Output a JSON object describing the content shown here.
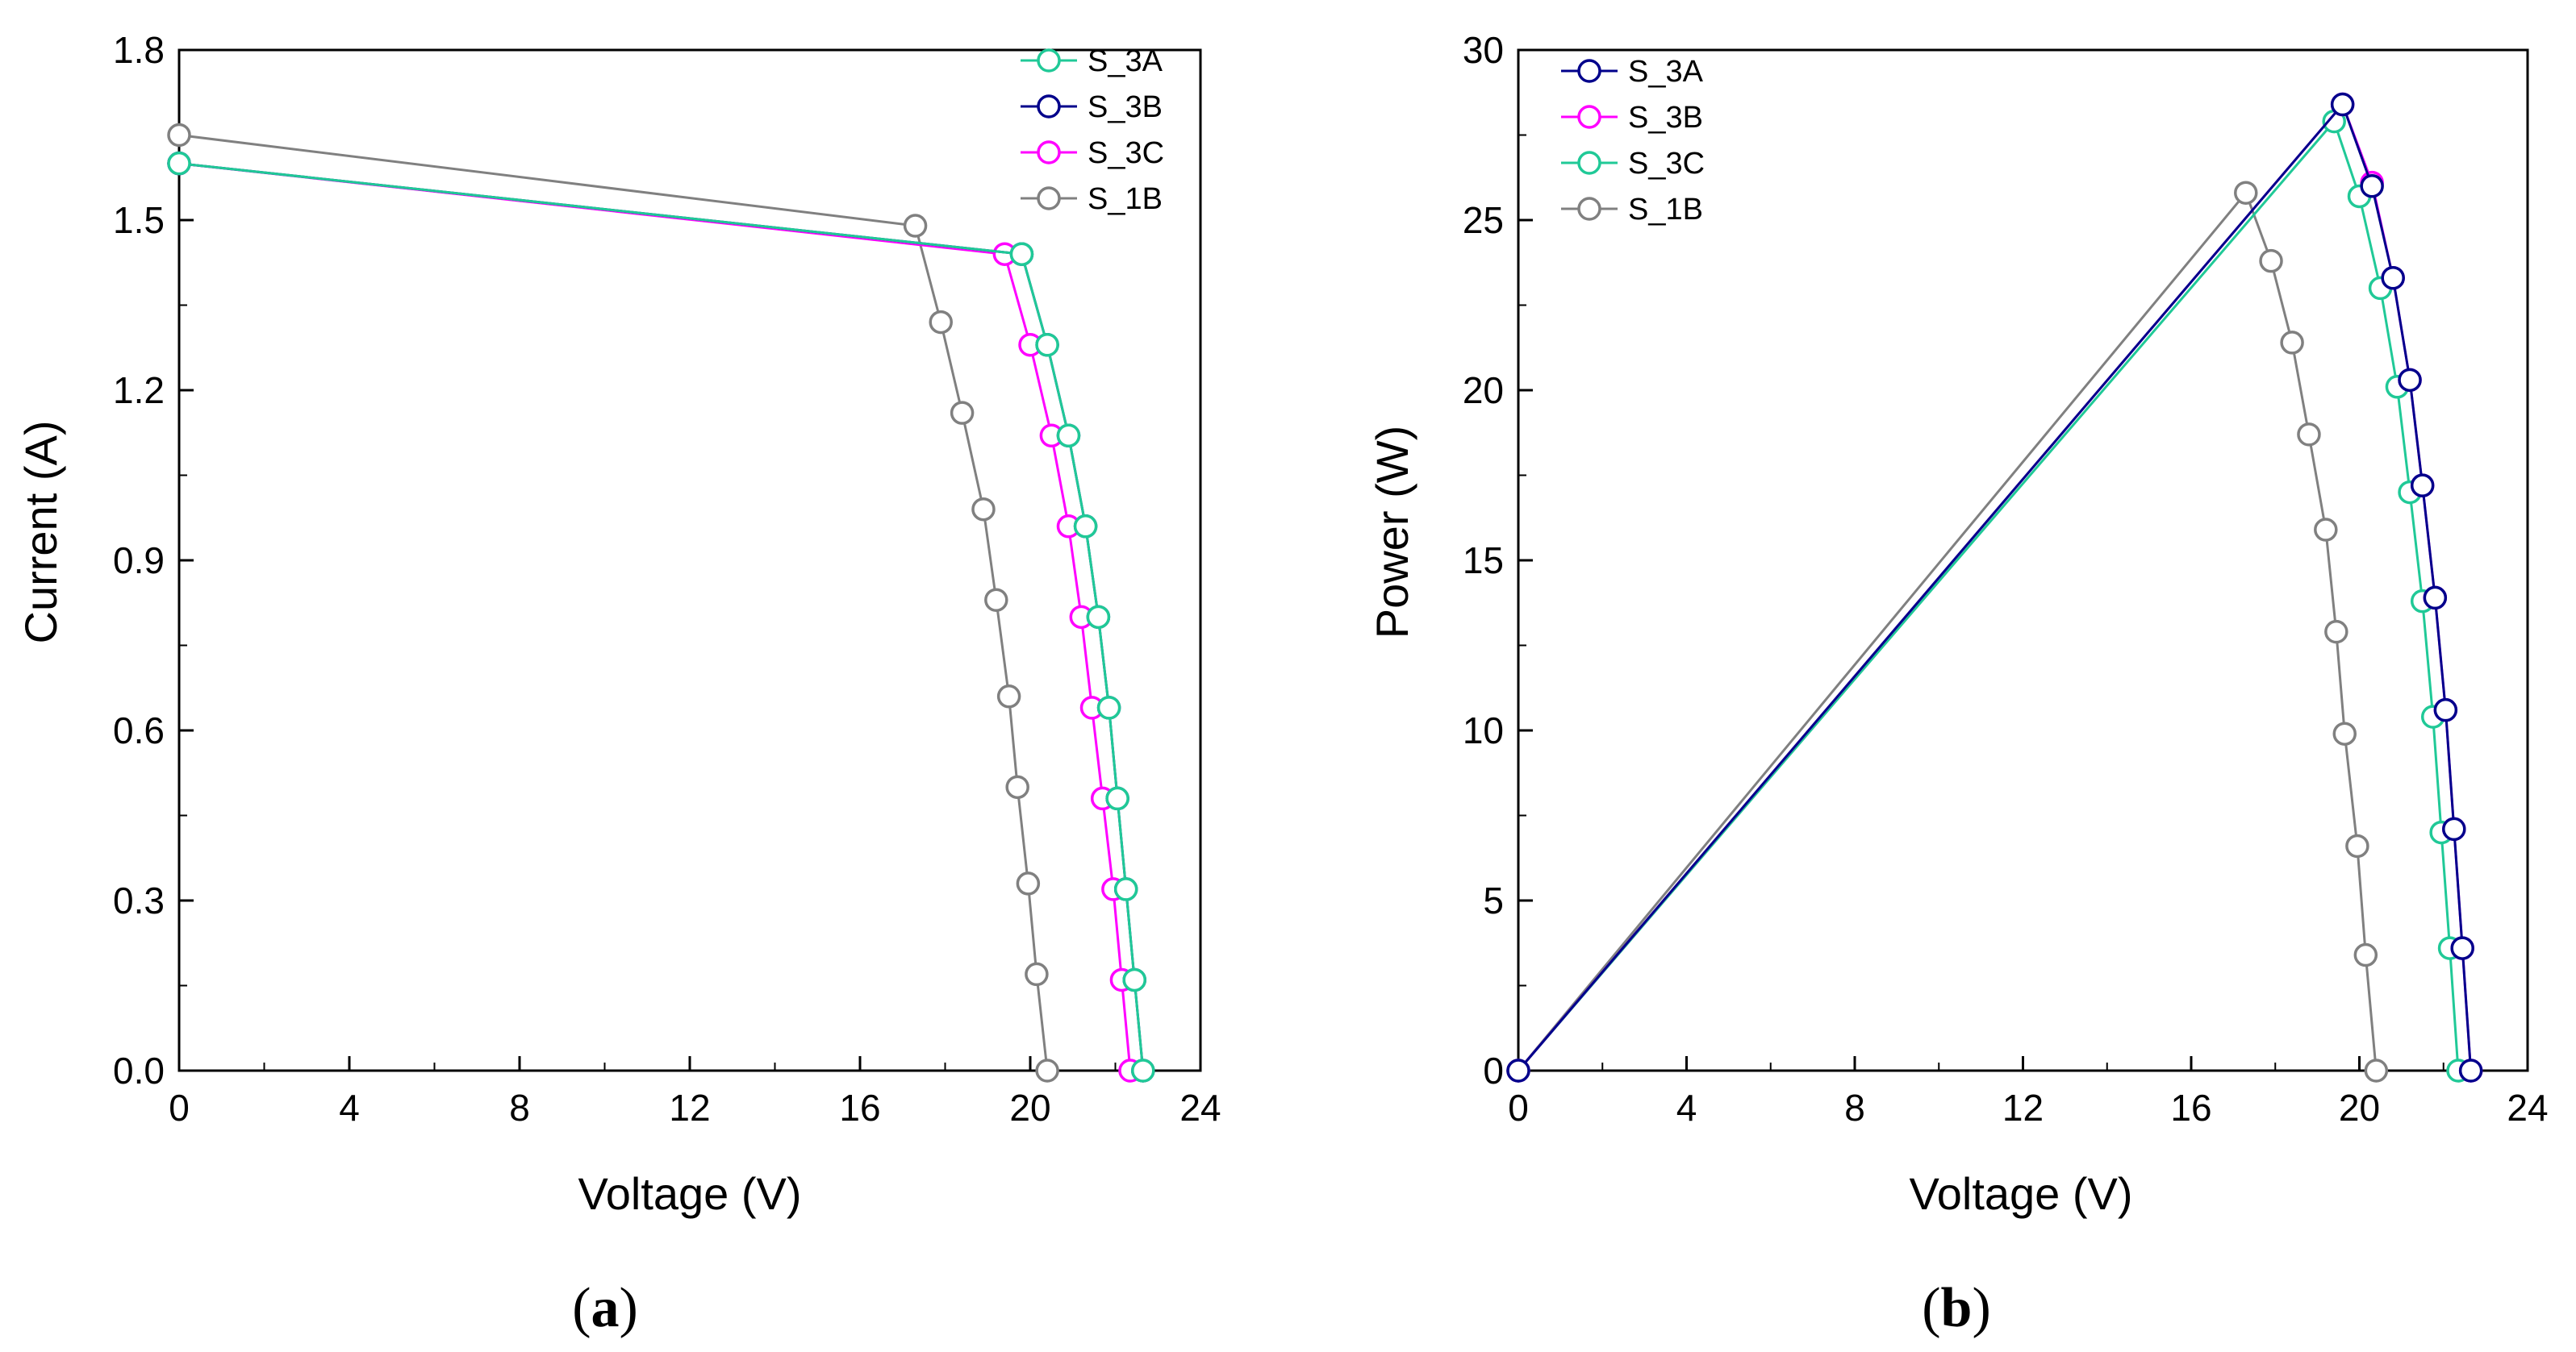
{
  "chart_data": [
    {
      "type": "line",
      "panel": "a",
      "caption": {
        "open": "(",
        "letter": "a",
        "close": ")"
      },
      "xlabel": "Voltage (V)",
      "ylabel": "Current (A)",
      "xlim": [
        0,
        24
      ],
      "ylim": [
        0,
        1.8
      ],
      "xticks": [
        "0",
        "4",
        "8",
        "12",
        "16",
        "20",
        "24"
      ],
      "yticks": [
        "0.0",
        "0.3",
        "0.6",
        "0.9",
        "1.2",
        "1.5",
        "1.8"
      ],
      "legend_position": "top-right",
      "series": [
        {
          "name": "S_3A",
          "color": "#20c997",
          "x": [
            0,
            19.8,
            20.4,
            20.9,
            21.3,
            21.6,
            21.85,
            22.05,
            22.25,
            22.45,
            22.65
          ],
          "y": [
            1.6,
            1.44,
            1.28,
            1.12,
            0.96,
            0.8,
            0.64,
            0.48,
            0.32,
            0.16,
            0.0
          ]
        },
        {
          "name": "S_3B",
          "color": "#00008b",
          "x": [
            0,
            19.8,
            20.4,
            20.9,
            21.3,
            21.6,
            21.85,
            22.05,
            22.25,
            22.45,
            22.65
          ],
          "y": [
            1.6,
            1.44,
            1.28,
            1.12,
            0.96,
            0.8,
            0.64,
            0.48,
            0.32,
            0.16,
            0.0
          ]
        },
        {
          "name": "S_3C",
          "color": "#ff00ff",
          "x": [
            0,
            19.4,
            20.0,
            20.5,
            20.9,
            21.2,
            21.45,
            21.7,
            21.95,
            22.15,
            22.35
          ],
          "y": [
            1.6,
            1.44,
            1.28,
            1.12,
            0.96,
            0.8,
            0.64,
            0.48,
            0.32,
            0.16,
            0.0
          ]
        },
        {
          "name": "S_1B",
          "color": "#808080",
          "x": [
            0,
            17.3,
            17.9,
            18.4,
            18.9,
            19.2,
            19.5,
            19.7,
            19.95,
            20.15,
            20.4
          ],
          "y": [
            1.65,
            1.49,
            1.32,
            1.16,
            0.99,
            0.83,
            0.66,
            0.5,
            0.33,
            0.17,
            0.0
          ]
        }
      ]
    },
    {
      "type": "line",
      "panel": "b",
      "caption": {
        "open": "(",
        "letter": "b",
        "close": ")"
      },
      "xlabel": "Voltage (V)",
      "ylabel": "Power (W)",
      "xlim": [
        0,
        24
      ],
      "ylim": [
        0,
        30
      ],
      "xticks": [
        "0",
        "4",
        "8",
        "12",
        "16",
        "20",
        "24"
      ],
      "yticks": [
        "0",
        "5",
        "10",
        "15",
        "20",
        "25",
        "30"
      ],
      "legend_position": "top-left",
      "series": [
        {
          "name": "S_3A",
          "color": "#00008b",
          "x": [
            0,
            19.6,
            20.3,
            20.8,
            21.2,
            21.5,
            21.8,
            22.05,
            22.25,
            22.45,
            22.65
          ],
          "y": [
            0,
            28.4,
            26.0,
            23.3,
            20.3,
            17.2,
            13.9,
            10.6,
            7.1,
            3.6,
            0.0
          ]
        },
        {
          "name": "S_3B",
          "color": "#ff00ff",
          "x": [
            0,
            19.6,
            20.3,
            20.8,
            21.2,
            21.5,
            21.8,
            22.05,
            22.25,
            22.45,
            22.65
          ],
          "y": [
            0,
            28.4,
            26.1,
            23.3,
            20.3,
            17.2,
            13.9,
            10.6,
            7.1,
            3.6,
            0.0
          ]
        },
        {
          "name": "S_3C",
          "color": "#20c997",
          "x": [
            0,
            19.4,
            20.0,
            20.5,
            20.9,
            21.2,
            21.5,
            21.75,
            21.95,
            22.15,
            22.35
          ],
          "y": [
            0,
            27.9,
            25.7,
            23.0,
            20.1,
            17.0,
            13.8,
            10.4,
            7.0,
            3.6,
            0.0
          ]
        },
        {
          "name": "S_1B",
          "color": "#808080",
          "x": [
            0,
            17.3,
            17.9,
            18.4,
            18.8,
            19.2,
            19.45,
            19.65,
            19.95,
            20.15,
            20.4
          ],
          "y": [
            0,
            25.8,
            23.8,
            21.4,
            18.7,
            15.9,
            12.9,
            9.9,
            6.6,
            3.4,
            0.0
          ]
        }
      ]
    }
  ]
}
